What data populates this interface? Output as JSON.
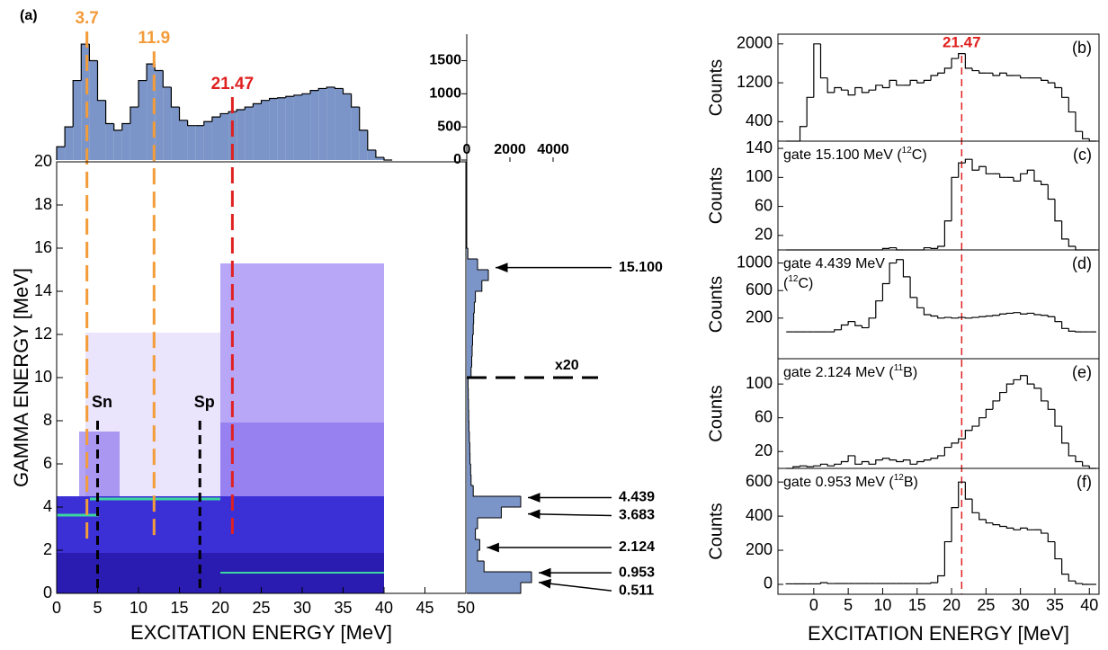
{
  "chart_data": [
    {
      "type": "histogram",
      "color": "#7b95c8",
      "bins": [
        0,
        1,
        2,
        3,
        4,
        5,
        6,
        7,
        8,
        9,
        10,
        11,
        12,
        13,
        14,
        15,
        16,
        17,
        18,
        19,
        20,
        21,
        22,
        23,
        24,
        25,
        26,
        27,
        28,
        29,
        30,
        31,
        32,
        33,
        34,
        35,
        36,
        37,
        38,
        39,
        40,
        41
      ],
      "values": [
        200,
        500,
        1200,
        1750,
        1500,
        900,
        550,
        450,
        550,
        800,
        1200,
        1450,
        1350,
        1100,
        800,
        600,
        520,
        520,
        580,
        650,
        700,
        730,
        760,
        800,
        850,
        900,
        930,
        940,
        960,
        980,
        1000,
        1050,
        1080,
        1100,
        1080,
        1000,
        800,
        450,
        150,
        40,
        0
      ],
      "ylim": [
        0,
        1900
      ],
      "yticks": [
        0,
        500,
        1000,
        1500
      ],
      "annotations": [
        {
          "value": 3.7,
          "color": "#f39c3a"
        },
        {
          "value": 11.9,
          "color": "#f39c3a"
        },
        {
          "value": 21.47,
          "color": "#e02020"
        }
      ]
    },
    {
      "type": "density",
      "title": "(a)",
      "xlabel": "EXCITATION ENERGY [MeV]",
      "ylabel": "GAMMA ENERGY [MeV]",
      "xlim": [
        0,
        50
      ],
      "ylim": [
        0,
        20
      ],
      "xticks": [
        0,
        5,
        10,
        15,
        20,
        25,
        30,
        35,
        40,
        45,
        50
      ],
      "yticks": [
        0,
        2,
        4,
        6,
        8,
        10,
        12,
        14,
        16,
        18,
        20
      ],
      "thresholds": [
        {
          "label": "Sn",
          "value": 5
        },
        {
          "label": "Sp",
          "value": 17.5
        }
      ]
    },
    {
      "type": "histogram",
      "orientation": "horizontal",
      "color": "#7b95c8",
      "bins": [
        0,
        0.5,
        1,
        1.5,
        2,
        2.5,
        3,
        3.5,
        4,
        4.5,
        5,
        5.5,
        6,
        6.5,
        7,
        7.5,
        8,
        8.5,
        9,
        9.5,
        10,
        10.5,
        11,
        11.5,
        12,
        12.5,
        13,
        13.5,
        14,
        14.5,
        15,
        15.5,
        16,
        16.5,
        17,
        17.5,
        18,
        18.5,
        19,
        19.5,
        20
      ],
      "values": [
        2500,
        3000,
        800,
        500,
        600,
        400,
        500,
        1600,
        2500,
        300,
        200,
        180,
        150,
        140,
        120,
        100,
        90,
        80,
        70,
        60,
        200,
        230,
        250,
        270,
        300,
        320,
        350,
        400,
        700,
        1000,
        500,
        50,
        0,
        0,
        0,
        0,
        0,
        0,
        0,
        0
      ],
      "xlim": [
        0,
        4000
      ],
      "xticks": [
        0,
        2000,
        4000
      ],
      "lines": [
        {
          "value": 15.1,
          "label": "15.100"
        },
        4.439,
        3.683,
        2.124,
        0.953,
        0.511
      ],
      "scale_break": {
        "label": "x20",
        "value": 10
      }
    },
    {
      "type": "histogram",
      "tag": "(b)",
      "ylabel": "Counts",
      "bins": [
        -4,
        -3,
        -2,
        -1,
        0,
        1,
        2,
        3,
        4,
        5,
        6,
        7,
        8,
        9,
        10,
        11,
        12,
        13,
        14,
        15,
        16,
        17,
        18,
        19,
        20,
        21,
        22,
        23,
        24,
        25,
        26,
        27,
        28,
        29,
        30,
        31,
        32,
        33,
        34,
        35,
        36,
        37,
        38,
        39,
        40,
        41
      ],
      "values": [
        0,
        0,
        300,
        900,
        2000,
        1300,
        1000,
        1100,
        1050,
        950,
        1100,
        1000,
        1050,
        1150,
        1100,
        1250,
        1150,
        1150,
        1250,
        1200,
        1250,
        1350,
        1400,
        1500,
        1700,
        1800,
        1500,
        1450,
        1400,
        1400,
        1350,
        1400,
        1350,
        1350,
        1300,
        1300,
        1300,
        1250,
        1200,
        1100,
        900,
        600,
        200,
        50,
        0
      ],
      "xlim": [
        -5.2,
        41.4
      ],
      "ylim": [
        0,
        2200
      ],
      "yticks": [
        400,
        1200,
        2000
      ],
      "annotations": [
        {
          "value": 21.47,
          "color": "#e02020"
        }
      ]
    },
    {
      "type": "histogram",
      "tag": "(c)",
      "ylabel": "Counts",
      "note_lines": [
        [
          {
            "text": "gate 15.100 MeV ("
          },
          {
            "sup": "12"
          },
          {
            "text": "C)"
          }
        ]
      ],
      "bins": [
        -4,
        -3,
        -2,
        -1,
        0,
        1,
        2,
        3,
        4,
        5,
        6,
        7,
        8,
        9,
        10,
        11,
        12,
        13,
        14,
        15,
        16,
        17,
        18,
        19,
        20,
        21,
        22,
        23,
        24,
        25,
        26,
        27,
        28,
        29,
        30,
        31,
        32,
        33,
        34,
        35,
        36,
        37,
        38,
        39,
        40,
        41
      ],
      "values": [
        0,
        0,
        0,
        0,
        0,
        0,
        0,
        0,
        0,
        0,
        0,
        0,
        0,
        0,
        2,
        3,
        0,
        0,
        0,
        0,
        3,
        2,
        5,
        40,
        100,
        120,
        125,
        110,
        115,
        105,
        105,
        100,
        100,
        95,
        105,
        110,
        95,
        90,
        70,
        40,
        15,
        5,
        0,
        0,
        0
      ],
      "xlim": [
        -5.2,
        41.4
      ],
      "ylim": [
        0,
        150
      ],
      "yticks": [
        20,
        60,
        100,
        140
      ]
    },
    {
      "type": "histogram",
      "tag": "(d)",
      "ylabel": "Counts",
      "note_lines": [
        [
          {
            "text": "gate 4.439 MeV"
          }
        ],
        [
          {
            "text": "("
          },
          {
            "sup": "12"
          },
          {
            "text": "C)"
          }
        ]
      ],
      "bins": [
        -4,
        -3,
        -2,
        -1,
        0,
        1,
        2,
        3,
        4,
        5,
        6,
        7,
        8,
        9,
        10,
        11,
        12,
        13,
        14,
        15,
        16,
        17,
        18,
        19,
        20,
        21,
        22,
        23,
        24,
        25,
        26,
        27,
        28,
        29,
        30,
        31,
        32,
        33,
        34,
        35,
        36,
        37,
        38,
        39,
        40,
        41
      ],
      "values": [
        0,
        0,
        0,
        0,
        0,
        0,
        0,
        30,
        100,
        150,
        90,
        60,
        200,
        450,
        700,
        1000,
        1050,
        800,
        500,
        350,
        250,
        230,
        200,
        210,
        200,
        210,
        200,
        210,
        220,
        230,
        240,
        260,
        270,
        280,
        260,
        270,
        250,
        240,
        220,
        150,
        50,
        10,
        0,
        0,
        0
      ],
      "xlim": [
        -5.2,
        41.4
      ],
      "ylim": [
        -390,
        1190
      ],
      "yticks": [
        200,
        600,
        1000
      ]
    },
    {
      "type": "histogram",
      "tag": "(e)",
      "ylabel": "Counts",
      "note_lines": [
        [
          {
            "text": "gate 2.124 MeV ("
          },
          {
            "sup": "11"
          },
          {
            "text": "B)"
          }
        ]
      ],
      "bins": [
        -4,
        -3,
        -2,
        -1,
        0,
        1,
        2,
        3,
        4,
        5,
        6,
        7,
        8,
        9,
        10,
        11,
        12,
        13,
        14,
        15,
        16,
        17,
        18,
        19,
        20,
        21,
        22,
        23,
        24,
        25,
        26,
        27,
        28,
        29,
        30,
        31,
        32,
        33,
        34,
        35,
        36,
        37,
        38,
        39,
        40,
        41
      ],
      "values": [
        0,
        2,
        3,
        2,
        3,
        5,
        3,
        5,
        8,
        15,
        5,
        8,
        5,
        10,
        12,
        10,
        8,
        10,
        5,
        8,
        10,
        12,
        15,
        25,
        30,
        35,
        45,
        50,
        60,
        70,
        80,
        90,
        100,
        105,
        110,
        100,
        95,
        80,
        70,
        50,
        30,
        15,
        8,
        3,
        0
      ],
      "xlim": [
        -5.2,
        41.4
      ],
      "ylim": [
        0,
        130
      ],
      "yticks": [
        20,
        60,
        100
      ]
    },
    {
      "type": "histogram",
      "tag": "(f)",
      "ylabel": "Counts",
      "xlabel": "EXCITATION ENERGY [MeV]",
      "note_lines": [
        [
          {
            "text": "gate 0.953 MeV ("
          },
          {
            "sup": "12"
          },
          {
            "text": "B)"
          }
        ]
      ],
      "bins": [
        -4,
        -3,
        -2,
        -1,
        0,
        1,
        2,
        3,
        4,
        5,
        6,
        7,
        8,
        9,
        10,
        11,
        12,
        13,
        14,
        15,
        16,
        17,
        18,
        19,
        20,
        21,
        22,
        23,
        24,
        25,
        26,
        27,
        28,
        29,
        30,
        31,
        32,
        33,
        34,
        35,
        36,
        37,
        38,
        39,
        40,
        41
      ],
      "values": [
        3,
        3,
        3,
        3,
        3,
        10,
        5,
        5,
        5,
        5,
        5,
        5,
        5,
        5,
        5,
        5,
        5,
        5,
        5,
        5,
        5,
        10,
        50,
        250,
        450,
        600,
        500,
        420,
        380,
        360,
        350,
        340,
        330,
        320,
        330,
        320,
        320,
        300,
        250,
        150,
        60,
        20,
        5,
        0,
        0
      ],
      "xlim": [
        -5.2,
        41.4
      ],
      "ylim": [
        -58,
        680
      ],
      "yticks": [
        0,
        200,
        400,
        600
      ],
      "xticks": [
        0,
        5,
        10,
        15,
        20,
        25,
        30,
        35,
        40
      ]
    }
  ]
}
